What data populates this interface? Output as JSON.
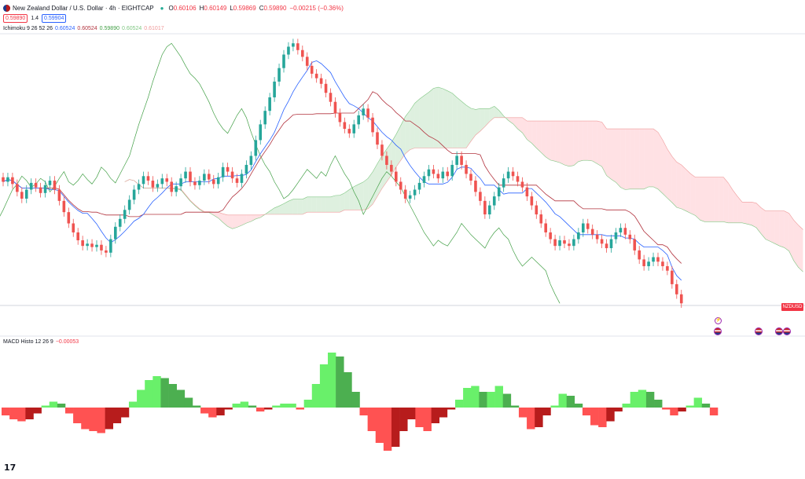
{
  "header": {
    "title": "New Zealand Dollar / U.S. Dollar · 4h · EIGHTCAP",
    "ohlc": [
      {
        "label": "O",
        "value": "0.60106"
      },
      {
        "label": "H",
        "value": "0.60149"
      },
      {
        "label": "L",
        "value": "0.59869"
      },
      {
        "label": "C",
        "value": "0.59890"
      },
      {
        "label": "",
        "value": "−0.00215 (−0.36%)"
      }
    ],
    "sell_price": "0.59890",
    "spread": "1.4",
    "buy_price": "0.59904"
  },
  "ichimoku_legend": {
    "name": "Ichimoku 9 26 52 26",
    "values": [
      "0.60524",
      "0.60524",
      "0.59890",
      "0.60524",
      "0.61017"
    ]
  },
  "macd_legend": {
    "name": "MACD Histo 12 26 9",
    "value": "−0.00053"
  },
  "symbol_tag": "NZDUSD",
  "colors": {
    "up": "#26a69a",
    "down": "#ef5350",
    "tenkan": "#2962ff",
    "kijun": "#b2333e",
    "chikou": "#43a047",
    "cloud_bull": "#c8e6c9",
    "cloud_bear": "#ffcdd2",
    "macd_pos_strong": "#4caf50",
    "macd_pos_light": "#69f06a",
    "macd_neg_strong": "#b71c1c",
    "macd_neg_light": "#ff5252"
  },
  "chart_data": {
    "type": "candlestick",
    "title": "New Zealand Dollar / U.S. Dollar · 4h · EIGHTCAP",
    "price_range_approx": [
      0.5985,
      0.6225
    ],
    "close_series": [
      0.6097,
      0.6101,
      0.6095,
      0.6088,
      0.6082,
      0.609,
      0.6096,
      0.6092,
      0.6087,
      0.6094,
      0.6098,
      0.609,
      0.608,
      0.607,
      0.606,
      0.6052,
      0.6045,
      0.604,
      0.6042,
      0.6039,
      0.6041,
      0.6036,
      0.6034,
      0.6046,
      0.6057,
      0.6064,
      0.6072,
      0.6081,
      0.609,
      0.6095,
      0.6102,
      0.6098,
      0.6092,
      0.6095,
      0.61,
      0.6097,
      0.6088,
      0.6093,
      0.61,
      0.6106,
      0.6097,
      0.6094,
      0.6098,
      0.6104,
      0.6099,
      0.6095,
      0.6101,
      0.611,
      0.6106,
      0.61,
      0.6096,
      0.6104,
      0.6112,
      0.612,
      0.6134,
      0.6148,
      0.616,
      0.6172,
      0.6186,
      0.6198,
      0.621,
      0.6217,
      0.622,
      0.6214,
      0.6208,
      0.62,
      0.6193,
      0.6189,
      0.6184,
      0.6176,
      0.6168,
      0.6158,
      0.615,
      0.6144,
      0.614,
      0.6148,
      0.6156,
      0.6162,
      0.6154,
      0.6141,
      0.613,
      0.612,
      0.6112,
      0.6106,
      0.6097,
      0.609,
      0.6082,
      0.6085,
      0.609,
      0.6096,
      0.6102,
      0.6108,
      0.6104,
      0.61,
      0.6106,
      0.6102,
      0.6112,
      0.612,
      0.6112,
      0.6104,
      0.6098,
      0.6088,
      0.608,
      0.6068,
      0.6076,
      0.6084,
      0.6092,
      0.61,
      0.6106,
      0.6102,
      0.6097,
      0.6092,
      0.6084,
      0.6076,
      0.6068,
      0.606,
      0.6052,
      0.6046,
      0.604,
      0.6045,
      0.6042,
      0.604,
      0.6046,
      0.6052,
      0.606,
      0.6055,
      0.605,
      0.6046,
      0.6042,
      0.6038,
      0.6046,
      0.6052,
      0.6056,
      0.605,
      0.6046,
      0.6036,
      0.6028,
      0.6022,
      0.6026,
      0.603,
      0.6026,
      0.6022,
      0.6018,
      0.6006,
      0.5997,
      0.5989
    ],
    "macd_histogram": [
      -0.0004,
      -0.0006,
      -0.0007,
      -0.0006,
      -0.0003,
      0.0001,
      0.0003,
      0.0002,
      -0.0003,
      -0.0008,
      -0.0011,
      -0.0012,
      -0.0013,
      -0.0011,
      -0.0008,
      -0.0005,
      0.0003,
      0.0009,
      0.0014,
      0.0016,
      0.0015,
      0.0012,
      0.0009,
      0.0005,
      0.0001,
      -0.0003,
      -0.0005,
      -0.0004,
      -0.0001,
      0.0002,
      0.0003,
      0.0001,
      -0.0002,
      -0.0001,
      0.0001,
      0.0002,
      0.0002,
      -0.0001,
      0.0004,
      0.0012,
      0.0022,
      0.0028,
      0.0026,
      0.0018,
      0.0008,
      -0.0004,
      -0.0012,
      -0.0018,
      -0.0022,
      -0.002,
      -0.0012,
      -0.0006,
      -0.001,
      -0.0012,
      -0.0008,
      -0.0005,
      -0.0001,
      0.0004,
      0.001,
      0.0011,
      0.0008,
      0.0008,
      0.0011,
      0.0007,
      0.0001,
      -0.0005,
      -0.0011,
      -0.001,
      -0.0004,
      0.0001,
      0.0007,
      0.0006,
      0.0002,
      -0.0004,
      -0.0009,
      -0.001,
      -0.0007,
      -0.0002,
      0.0002,
      0.0008,
      0.0009,
      0.0008,
      0.0004,
      -0.0001,
      -0.0004,
      -0.0002,
      0.0001,
      0.0005,
      0.0002,
      -0.0004
    ]
  }
}
